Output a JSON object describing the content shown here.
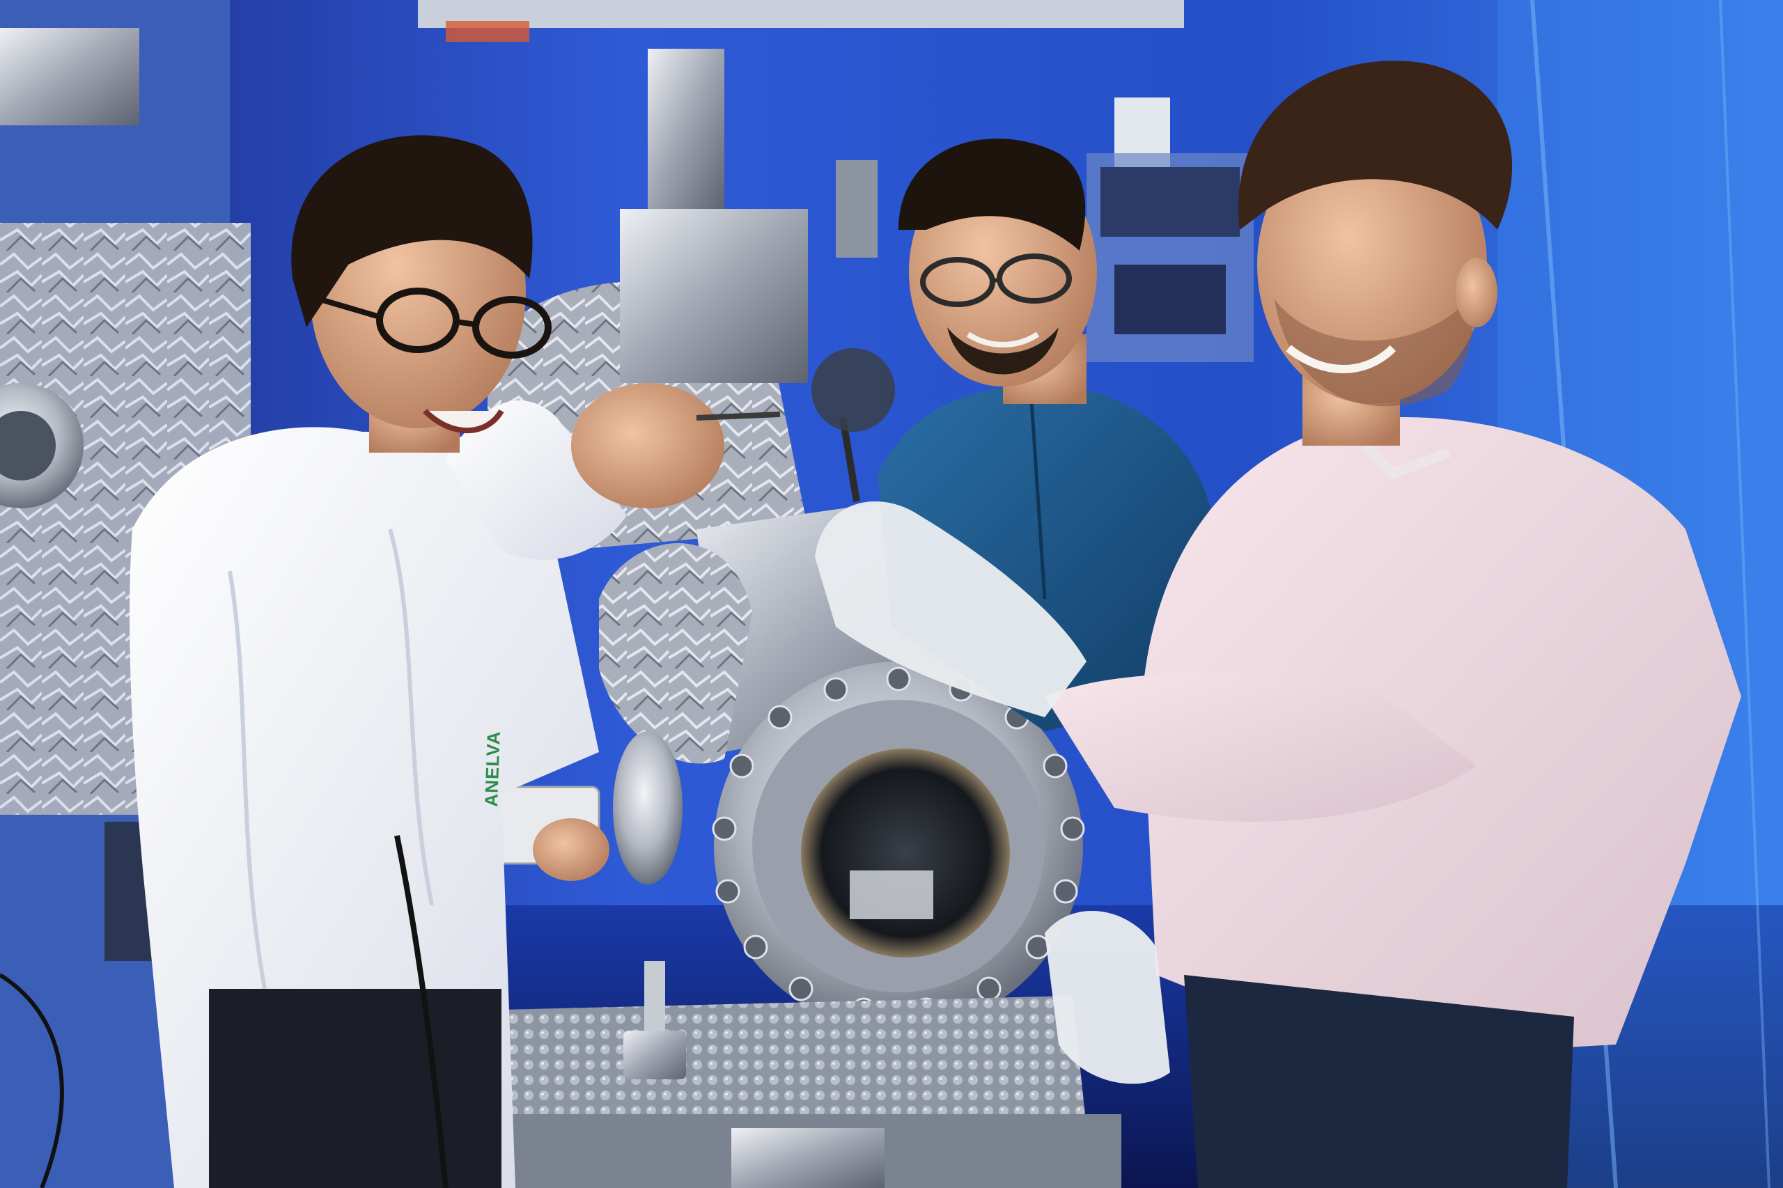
{
  "scene": {
    "description_type": "photograph",
    "palette": {
      "background_blue": "#2a52d8",
      "deep_blue": "#0d1f66",
      "foil": "#b9bdc8",
      "steel": "#c8ccd4",
      "shirt_white": "#f3f3f5",
      "shirt_pink": "#f1dce2",
      "shirt_blue": "#1f5a8f",
      "skin": "#d9a27f",
      "hair": "#2a1e16",
      "glove": "#e9ecef",
      "cable": "#1a1a1a",
      "bubble_wrap": "#a9b0bb"
    }
  },
  "gauge_brand": "ANELVA"
}
